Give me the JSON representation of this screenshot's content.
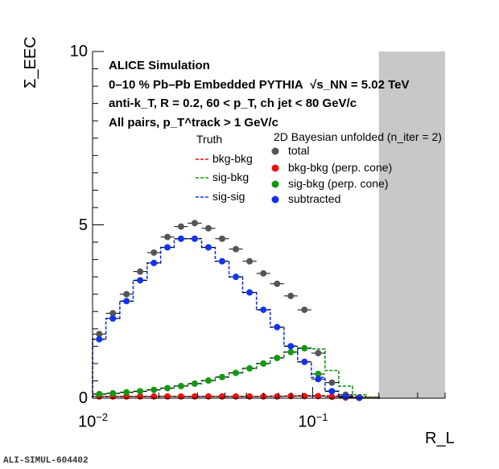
{
  "chart_data": {
    "type": "scatter",
    "x_scale": "log",
    "xlim": [
      0.01,
      0.4
    ],
    "ylim": [
      0,
      10
    ],
    "xlabel": "R_L",
    "ylabel": "Σ_EEC",
    "grid": false,
    "excluded_region_x": [
      0.2,
      0.4
    ],
    "texts": {
      "experiment": "ALICE Simulation",
      "line2_a": "0–10 % Pb–Pb Embedded PYTHIA",
      "line2_b": "√s_NN = 5.02 TeV",
      "line3": "anti-k_T, R = 0.2, 60 < p_T, ch jet < 80 GeV/c",
      "line4": "All pairs, p_T^track > 1 GeV/c",
      "truth_title": "Truth",
      "unfold_title": "2D Bayesian unfolded (n_iter = 2)",
      "id": "ALI-SIMUL-604402"
    },
    "x_bin_edges": [
      0.01,
      0.0115,
      0.0133,
      0.0153,
      0.0177,
      0.0204,
      0.0235,
      0.0271,
      0.0313,
      0.0361,
      0.0417,
      0.0481,
      0.0556,
      0.0642,
      0.0741,
      0.0855,
      0.0987,
      0.1139,
      0.1315,
      0.1518,
      0.1752,
      0.2022,
      0.2334,
      0.2694,
      0.3109,
      0.3589
    ],
    "points_series": [
      {
        "name": "total",
        "color": "#555555",
        "values": [
          1.85,
          2.45,
          3.0,
          3.65,
          4.2,
          4.65,
          4.95,
          5.05,
          4.9,
          4.6,
          4.3,
          3.95,
          3.6,
          3.3,
          2.95,
          2.55,
          1.3,
          0.45,
          0.1,
          0.02
        ]
      },
      {
        "name": "bkg-bkg (perp. cone)",
        "color": "#ee1111",
        "values": [
          0.05,
          0.05,
          0.05,
          0.05,
          0.05,
          0.05,
          0.05,
          0.05,
          0.05,
          0.05,
          0.05,
          0.05,
          0.05,
          0.05,
          0.06,
          0.06,
          0.06,
          0.04,
          0.02,
          0.01
        ]
      },
      {
        "name": "sig-bkg (perp. cone)",
        "color": "#119911",
        "values": [
          0.12,
          0.14,
          0.17,
          0.2,
          0.24,
          0.29,
          0.35,
          0.42,
          0.51,
          0.61,
          0.73,
          0.86,
          1.0,
          1.16,
          1.33,
          1.44,
          0.7,
          0.2,
          0.05,
          0.01
        ]
      },
      {
        "name": "subtracted",
        "color": "#1133ee",
        "values": [
          1.7,
          2.3,
          2.8,
          3.4,
          3.9,
          4.35,
          4.6,
          4.6,
          4.35,
          3.95,
          3.5,
          3.05,
          2.55,
          2.05,
          1.5,
          1.05,
          0.55,
          0.2,
          0.05,
          0.01
        ]
      }
    ],
    "step_series": [
      {
        "name": "bkg-bkg",
        "color": "#ee1111",
        "values": [
          0.05,
          0.05,
          0.05,
          0.05,
          0.05,
          0.05,
          0.05,
          0.05,
          0.05,
          0.05,
          0.05,
          0.05,
          0.05,
          0.06,
          0.06,
          0.07,
          0.07,
          0.07,
          0.07,
          0.05,
          0.03
        ]
      },
      {
        "name": "sig-bkg",
        "color": "#119911",
        "values": [
          0.12,
          0.14,
          0.17,
          0.2,
          0.24,
          0.29,
          0.35,
          0.42,
          0.51,
          0.61,
          0.73,
          0.86,
          1.0,
          1.16,
          1.33,
          1.44,
          1.42,
          0.8,
          0.35,
          0.1,
          0.03
        ]
      },
      {
        "name": "sig-sig",
        "color": "#1133ee",
        "values": [
          1.7,
          2.3,
          2.8,
          3.4,
          3.9,
          4.35,
          4.6,
          4.6,
          4.35,
          3.95,
          3.5,
          3.05,
          2.55,
          2.05,
          1.5,
          1.05,
          0.6,
          0.2,
          0.05,
          0.01,
          0.0
        ]
      }
    ],
    "ticks": {
      "y": [
        {
          "v": 0,
          "label": "0"
        },
        {
          "v": 5,
          "label": "5"
        },
        {
          "v": 10,
          "label": "10"
        }
      ],
      "x_major": [
        {
          "v": 0.01,
          "base": "10",
          "exp": "−2"
        },
        {
          "v": 0.1,
          "base": "10",
          "exp": "−1"
        }
      ]
    }
  }
}
